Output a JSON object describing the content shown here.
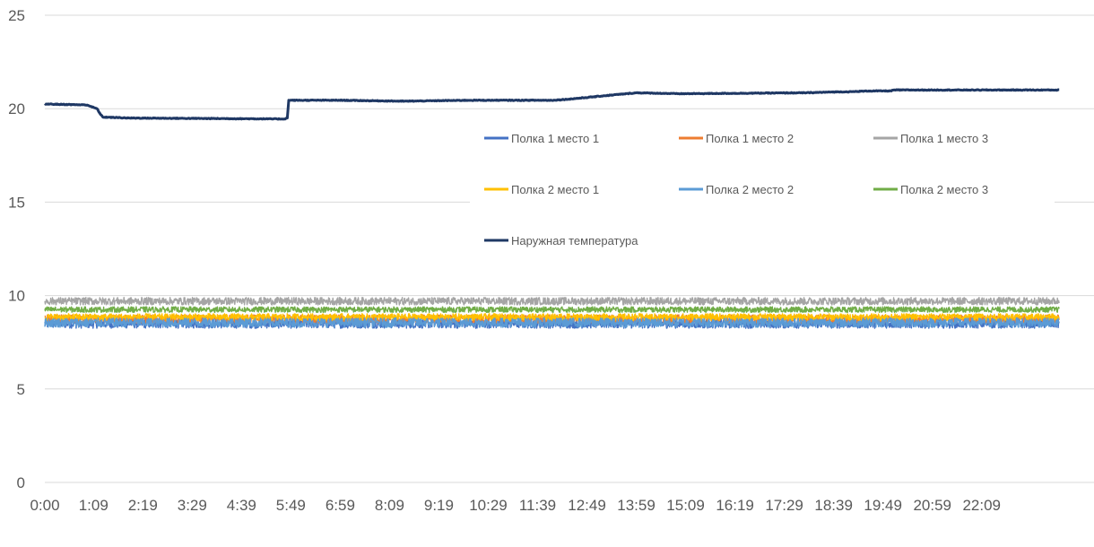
{
  "chart_data": {
    "type": "line",
    "title": "",
    "xlabel": "",
    "ylabel": "",
    "ylim": [
      0,
      25
    ],
    "yticks": [
      0,
      5,
      10,
      15,
      20,
      25
    ],
    "xlim_minutes": [
      0,
      1440
    ],
    "x_ticks": [
      "0:00",
      "1:09",
      "2:19",
      "3:29",
      "4:39",
      "5:49",
      "6:59",
      "8:09",
      "9:19",
      "10:29",
      "11:39",
      "12:49",
      "13:59",
      "15:09",
      "16:19",
      "17:29",
      "18:39",
      "19:49",
      "20:59",
      "22:09"
    ],
    "grid": "horizontal",
    "legend_position": "center-right",
    "legend_columns": 3,
    "series": [
      {
        "name": "Полка 1 место 1",
        "color": "#4472C4",
        "x": [
          "0:00",
          "23:59"
        ],
        "y": [
          8.5,
          8.5
        ],
        "noise": 0.25
      },
      {
        "name": "Полка 1 место 2",
        "color": "#ED7D31",
        "x": [
          "0:00",
          "23:59"
        ],
        "y": [
          8.75,
          8.75
        ],
        "noise": 0.22
      },
      {
        "name": "Полка 1 место 3",
        "color": "#A5A5A5",
        "x": [
          "0:00",
          "23:59"
        ],
        "y": [
          9.7,
          9.7
        ],
        "noise": 0.2
      },
      {
        "name": "Полка 2  место 1",
        "color": "#FFC000",
        "x": [
          "0:00",
          "23:59"
        ],
        "y": [
          8.85,
          8.85
        ],
        "noise": 0.18
      },
      {
        "name": "Полка 2 место 2",
        "color": "#5B9BD5",
        "x": [
          "0:00",
          "23:59"
        ],
        "y": [
          8.55,
          8.55
        ],
        "noise": 0.25
      },
      {
        "name": "Полка 2 место 3",
        "color": "#70AD47",
        "x": [
          "0:00",
          "23:59"
        ],
        "y": [
          9.25,
          9.25
        ],
        "noise": 0.15
      },
      {
        "name": "Наружная температура",
        "color": "#1F3864",
        "x": [
          "0:00",
          "1:00",
          "1:10",
          "1:14",
          "1:19",
          "1:22",
          "2:00",
          "5:40",
          "5:44",
          "5:46",
          "7:00",
          "8:30",
          "10:00",
          "12:00",
          "12:20",
          "12:49",
          "13:30",
          "14:00",
          "15:00",
          "18:00",
          "18:45",
          "19:00",
          "19:30",
          "20:00",
          "20:05",
          "21:00",
          "23:59"
        ],
        "y": [
          20.25,
          20.2,
          20.05,
          20.0,
          19.7,
          19.55,
          19.5,
          19.45,
          19.5,
          20.45,
          20.45,
          20.4,
          20.45,
          20.45,
          20.5,
          20.6,
          20.75,
          20.85,
          20.8,
          20.85,
          20.9,
          20.9,
          20.95,
          20.95,
          21.0,
          21.0,
          21.0
        ],
        "noise": 0.02
      }
    ]
  }
}
